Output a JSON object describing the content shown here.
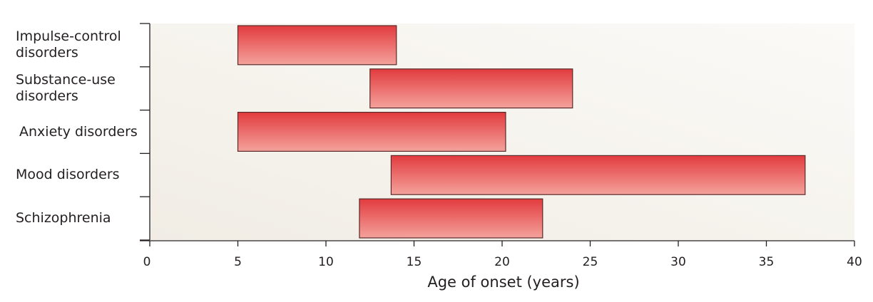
{
  "chart_data": {
    "type": "bar",
    "orientation": "horizontal-range",
    "title": "",
    "xlabel": "Age of onset (years)",
    "ylabel": "",
    "xlim": [
      0,
      40
    ],
    "xticks": [
      "0",
      "5",
      "10",
      "15",
      "20",
      "25",
      "30",
      "35",
      "40"
    ],
    "grid": false,
    "categories": [
      "Impulse-control\ndisorders",
      "Substance-use\ndisorders",
      "Anxiety disorders",
      "Mood disorders",
      "Schizophrenia"
    ],
    "ranges": [
      [
        5,
        14
      ],
      [
        12.5,
        24
      ],
      [
        5,
        20.2
      ],
      [
        13.7,
        37.2
      ],
      [
        11.9,
        22.3
      ]
    ],
    "colors": {
      "bar_top": "#e23b3e",
      "bar_bottom": "#f4a29c",
      "bar_stroke": "#5a2a2a",
      "plot_bg_left": "#f1ede5",
      "plot_bg_right": "#fbfaf7",
      "axis": "#231f20"
    }
  }
}
